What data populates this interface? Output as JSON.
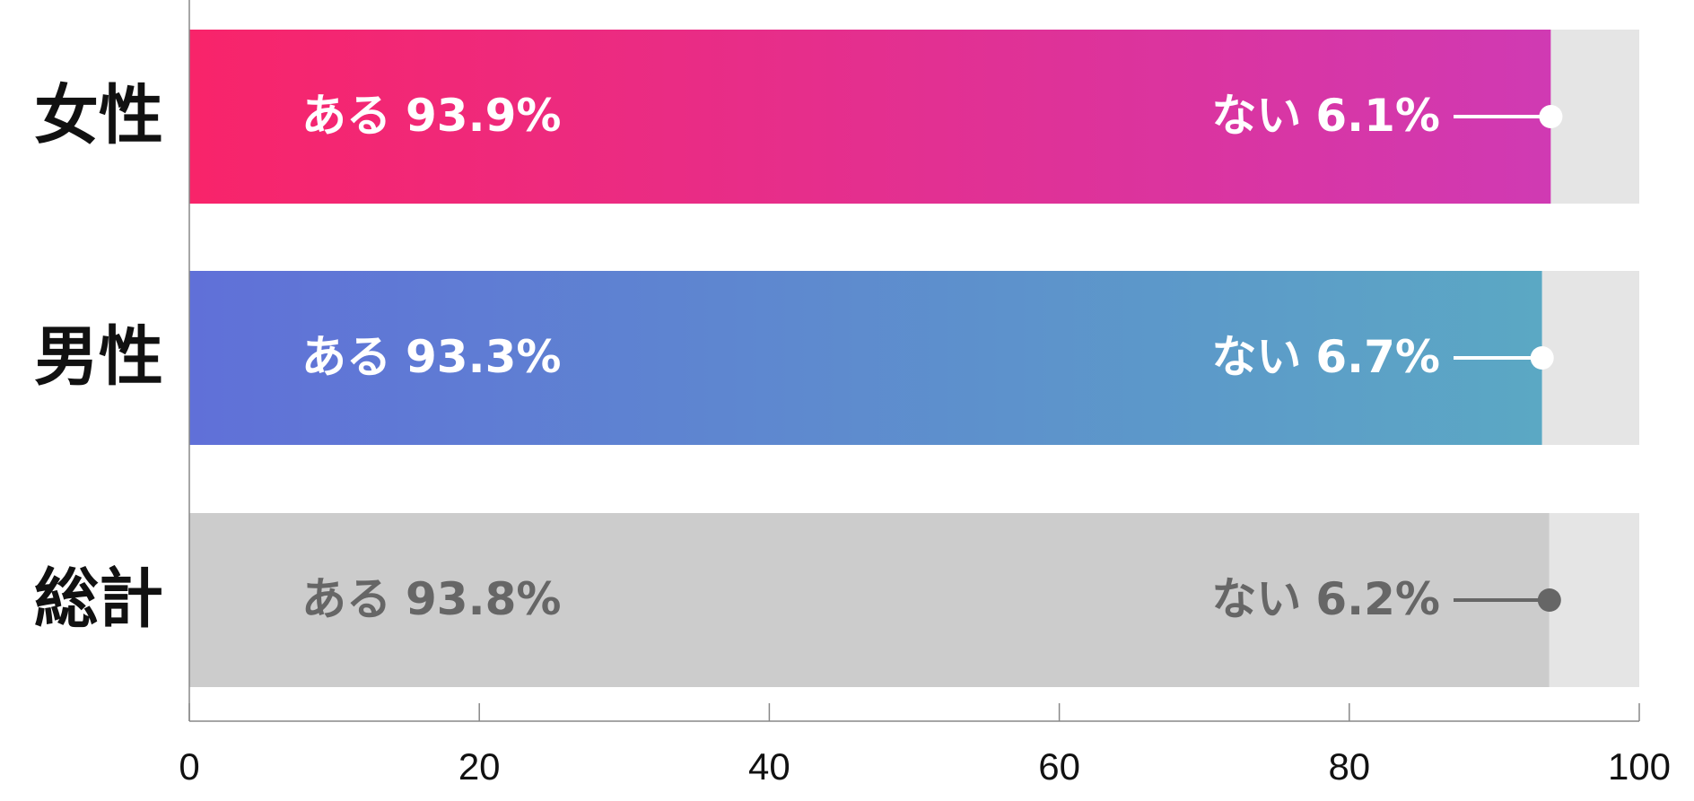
{
  "chart_data": {
    "type": "stacked_barh",
    "categories": [
      "女性",
      "男性",
      "総計"
    ],
    "series": [
      {
        "name": "ある",
        "values": [
          93.9,
          93.3,
          93.8
        ],
        "value_labels": [
          "93.9%",
          "93.3%",
          "93.8%"
        ],
        "gradients": [
          [
            "#f8246a",
            "#d03ab3"
          ],
          [
            "#6070d8",
            "#5ba8c4"
          ],
          [
            "#cccccc",
            "#cccccc"
          ]
        ]
      },
      {
        "name": "ない",
        "values": [
          6.1,
          6.7,
          6.2
        ],
        "value_labels": [
          "6.1%",
          "6.7%",
          "6.2%"
        ],
        "color": "#e5e5e5"
      }
    ],
    "label_colors": [
      "#ffffff",
      "#ffffff",
      "#666666"
    ],
    "xlim": [
      0,
      100
    ],
    "xticks": [
      0,
      20,
      40,
      60,
      80,
      100
    ]
  }
}
